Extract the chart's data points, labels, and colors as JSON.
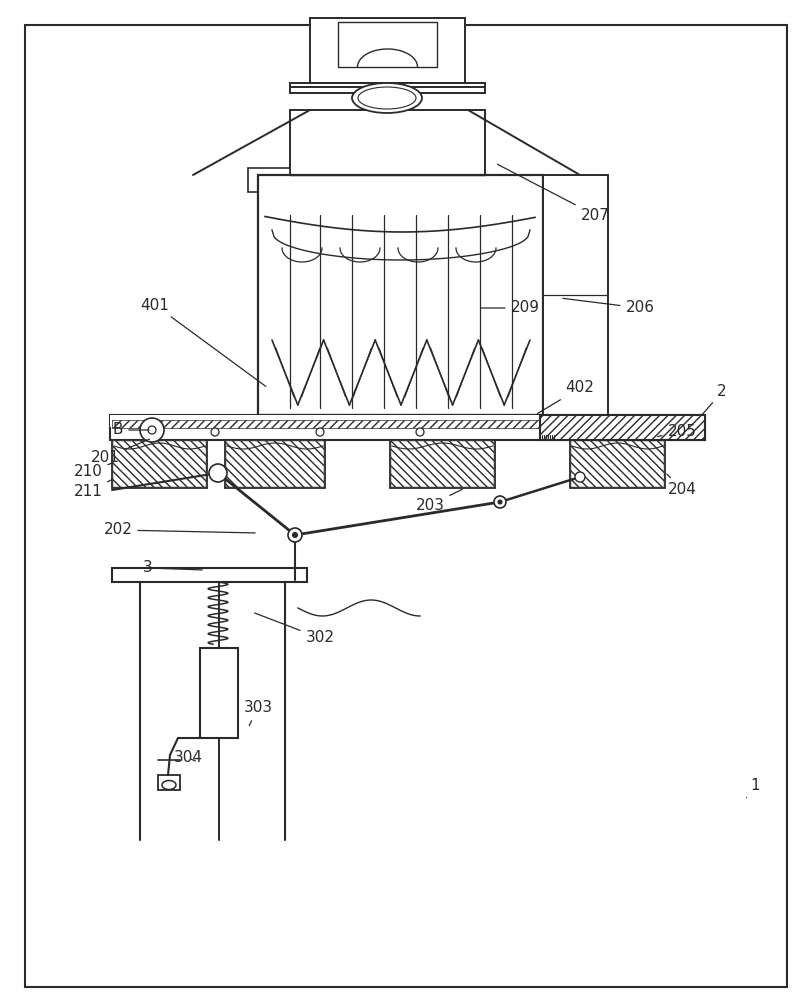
{
  "bg_color": "#ffffff",
  "line_color": "#2a2a2a",
  "figsize": [
    8.1,
    10.0
  ],
  "dpi": 100,
  "label_fs": 11,
  "leaders": [
    [
      "207",
      [
        595,
        215
      ],
      [
        495,
        163
      ]
    ],
    [
      "206",
      [
        640,
        308
      ],
      [
        560,
        298
      ]
    ],
    [
      "209",
      [
        525,
        308
      ],
      [
        478,
        308
      ]
    ],
    [
      "401",
      [
        155,
        305
      ],
      [
        268,
        388
      ]
    ],
    [
      "402",
      [
        580,
        388
      ],
      [
        535,
        415
      ]
    ],
    [
      "2",
      [
        722,
        392
      ],
      [
        700,
        417
      ]
    ],
    [
      "205",
      [
        682,
        432
      ],
      [
        655,
        437
      ]
    ],
    [
      "204",
      [
        682,
        490
      ],
      [
        665,
        472
      ]
    ],
    [
      "203",
      [
        430,
        505
      ],
      [
        465,
        488
      ]
    ],
    [
      "201",
      [
        105,
        458
      ],
      [
        152,
        438
      ]
    ],
    [
      "210",
      [
        88,
        472
      ],
      [
        115,
        462
      ]
    ],
    [
      "211",
      [
        88,
        492
      ],
      [
        115,
        478
      ]
    ],
    [
      "B",
      [
        118,
        430
      ],
      [
        152,
        430
      ]
    ],
    [
      "202",
      [
        118,
        530
      ],
      [
        258,
        533
      ]
    ],
    [
      "3",
      [
        148,
        568
      ],
      [
        205,
        570
      ]
    ],
    [
      "302",
      [
        320,
        638
      ],
      [
        252,
        612
      ]
    ],
    [
      "303",
      [
        258,
        708
      ],
      [
        248,
        728
      ]
    ],
    [
      "304",
      [
        188,
        758
      ],
      [
        198,
        762
      ]
    ],
    [
      "1",
      [
        755,
        785
      ],
      [
        745,
        800
      ]
    ]
  ]
}
